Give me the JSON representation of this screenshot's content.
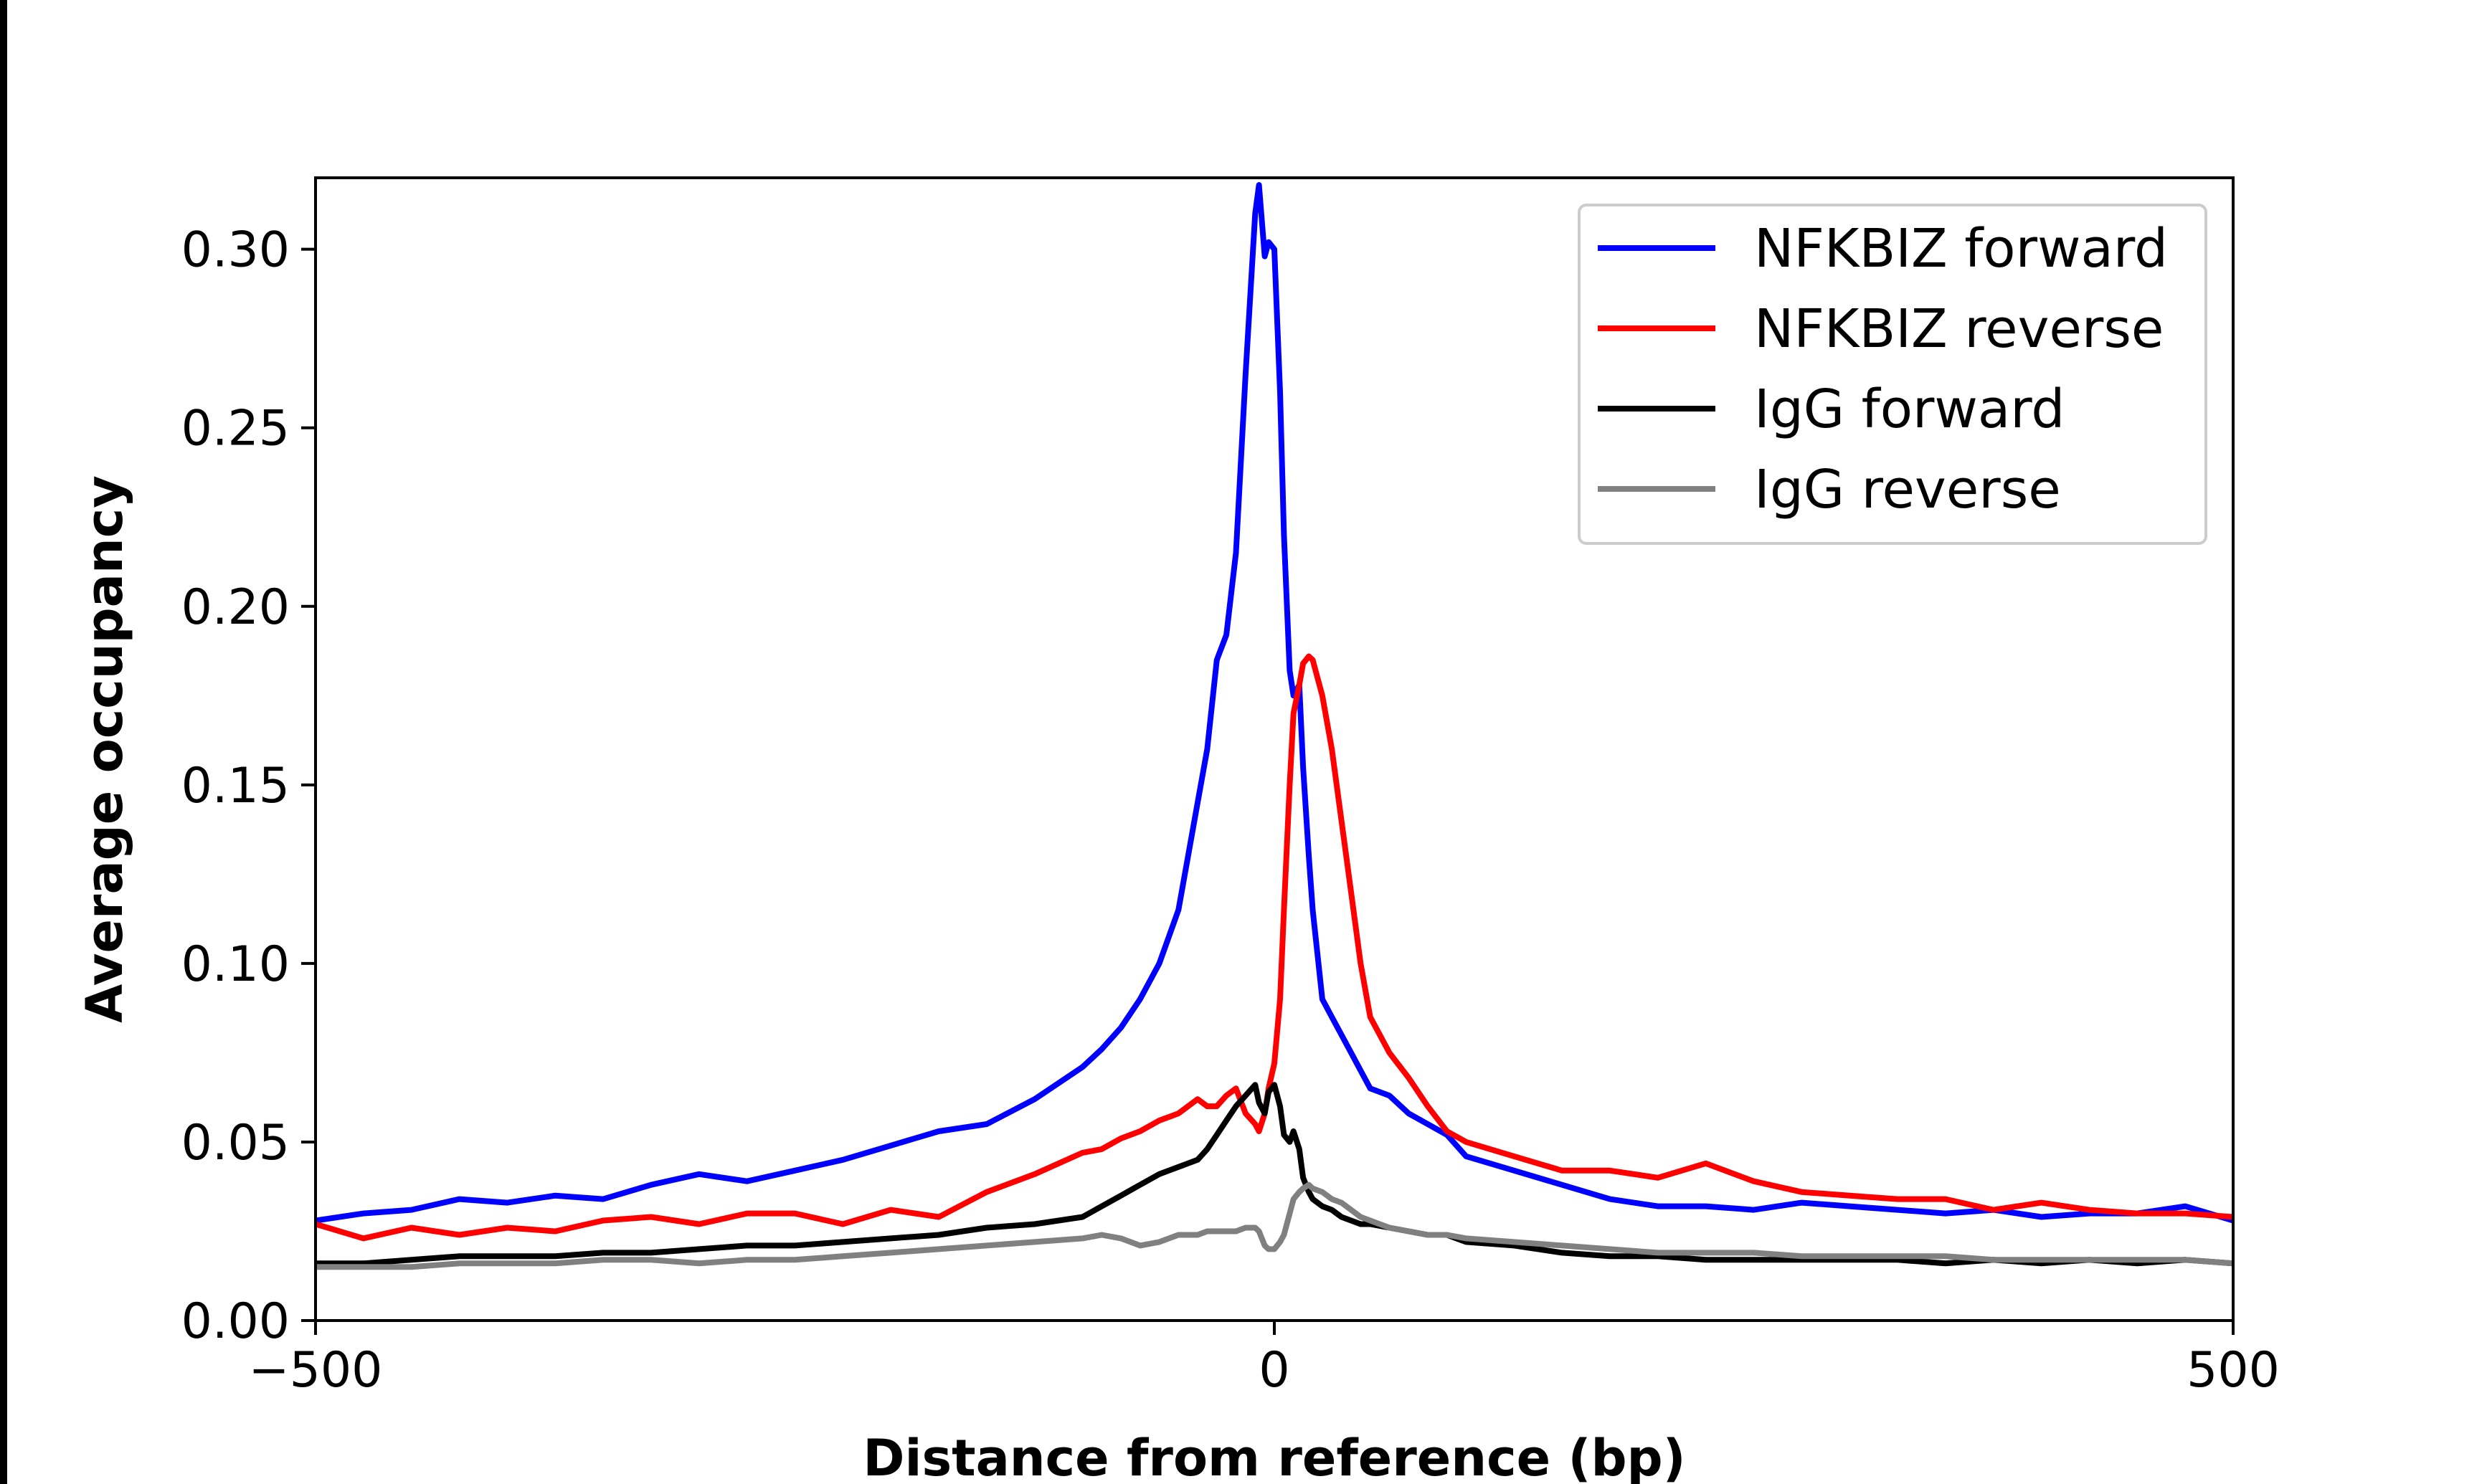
{
  "chart_data": {
    "type": "line",
    "xlabel": "Distance from reference (bp)",
    "ylabel": "Average occupancy",
    "xlim": [
      -500,
      500
    ],
    "ylim": [
      0,
      0.32
    ],
    "x_ticks": [
      {
        "value": -500,
        "label": "−500"
      },
      {
        "value": 0,
        "label": "0"
      },
      {
        "value": 500,
        "label": "500"
      }
    ],
    "y_ticks": [
      {
        "value": 0.0,
        "label": "0.00"
      },
      {
        "value": 0.05,
        "label": "0.05"
      },
      {
        "value": 0.1,
        "label": "0.10"
      },
      {
        "value": 0.15,
        "label": "0.15"
      },
      {
        "value": 0.2,
        "label": "0.20"
      },
      {
        "value": 0.25,
        "label": "0.25"
      },
      {
        "value": 0.3,
        "label": "0.30"
      }
    ],
    "grid": false,
    "legend_position": "top-right",
    "x": [
      -500,
      -475,
      -450,
      -425,
      -400,
      -375,
      -350,
      -325,
      -300,
      -275,
      -250,
      -225,
      -200,
      -175,
      -150,
      -125,
      -100,
      -90,
      -80,
      -70,
      -60,
      -50,
      -40,
      -35,
      -30,
      -25,
      -20,
      -15,
      -10,
      -8,
      -5,
      -3,
      0,
      3,
      5,
      8,
      10,
      13,
      15,
      18,
      20,
      25,
      30,
      35,
      40,
      45,
      50,
      60,
      70,
      80,
      90,
      100,
      125,
      150,
      175,
      200,
      225,
      250,
      275,
      300,
      325,
      350,
      375,
      400,
      425,
      450,
      475,
      500
    ],
    "series": [
      {
        "name": "NFKBIZ forward",
        "color": "#0000ff",
        "values": [
          0.028,
          0.03,
          0.031,
          0.034,
          0.033,
          0.035,
          0.034,
          0.038,
          0.041,
          0.039,
          0.042,
          0.045,
          0.049,
          0.053,
          0.055,
          0.062,
          0.071,
          0.076,
          0.082,
          0.09,
          0.1,
          0.115,
          0.145,
          0.16,
          0.185,
          0.192,
          0.215,
          0.265,
          0.31,
          0.318,
          0.298,
          0.302,
          0.3,
          0.26,
          0.22,
          0.182,
          0.175,
          0.178,
          0.155,
          0.13,
          0.115,
          0.09,
          0.085,
          0.08,
          0.075,
          0.07,
          0.065,
          0.063,
          0.058,
          0.055,
          0.052,
          0.046,
          0.042,
          0.038,
          0.034,
          0.032,
          0.032,
          0.031,
          0.033,
          0.032,
          0.031,
          0.03,
          0.031,
          0.029,
          0.03,
          0.03,
          0.032,
          0.028
        ]
      },
      {
        "name": "NFKBIZ reverse",
        "color": "#ff0000",
        "values": [
          0.027,
          0.023,
          0.026,
          0.024,
          0.026,
          0.025,
          0.028,
          0.029,
          0.027,
          0.03,
          0.03,
          0.027,
          0.031,
          0.029,
          0.036,
          0.041,
          0.047,
          0.048,
          0.051,
          0.053,
          0.056,
          0.058,
          0.062,
          0.06,
          0.06,
          0.063,
          0.065,
          0.058,
          0.055,
          0.053,
          0.058,
          0.065,
          0.072,
          0.09,
          0.115,
          0.15,
          0.17,
          0.178,
          0.184,
          0.186,
          0.185,
          0.175,
          0.16,
          0.14,
          0.12,
          0.1,
          0.085,
          0.075,
          0.068,
          0.06,
          0.053,
          0.05,
          0.046,
          0.042,
          0.042,
          0.04,
          0.044,
          0.039,
          0.036,
          0.035,
          0.034,
          0.034,
          0.031,
          0.033,
          0.031,
          0.03,
          0.03,
          0.029
        ]
      },
      {
        "name": "IgG forward",
        "color": "#000000",
        "values": [
          0.016,
          0.016,
          0.017,
          0.018,
          0.018,
          0.018,
          0.019,
          0.019,
          0.02,
          0.021,
          0.021,
          0.022,
          0.023,
          0.024,
          0.026,
          0.027,
          0.029,
          0.032,
          0.035,
          0.038,
          0.041,
          0.043,
          0.045,
          0.048,
          0.052,
          0.056,
          0.06,
          0.063,
          0.066,
          0.061,
          0.058,
          0.064,
          0.066,
          0.06,
          0.052,
          0.05,
          0.053,
          0.048,
          0.04,
          0.036,
          0.034,
          0.032,
          0.031,
          0.029,
          0.028,
          0.027,
          0.027,
          0.026,
          0.025,
          0.024,
          0.024,
          0.022,
          0.021,
          0.019,
          0.018,
          0.018,
          0.017,
          0.017,
          0.017,
          0.017,
          0.017,
          0.016,
          0.017,
          0.016,
          0.017,
          0.016,
          0.017,
          0.016
        ]
      },
      {
        "name": "IgG reverse",
        "color": "#808080",
        "values": [
          0.015,
          0.015,
          0.015,
          0.016,
          0.016,
          0.016,
          0.017,
          0.017,
          0.016,
          0.017,
          0.017,
          0.018,
          0.019,
          0.02,
          0.021,
          0.022,
          0.023,
          0.024,
          0.023,
          0.021,
          0.022,
          0.024,
          0.024,
          0.025,
          0.025,
          0.025,
          0.025,
          0.026,
          0.026,
          0.025,
          0.021,
          0.02,
          0.02,
          0.022,
          0.024,
          0.03,
          0.034,
          0.036,
          0.037,
          0.038,
          0.037,
          0.036,
          0.034,
          0.033,
          0.031,
          0.029,
          0.028,
          0.026,
          0.025,
          0.024,
          0.024,
          0.023,
          0.022,
          0.021,
          0.02,
          0.019,
          0.019,
          0.019,
          0.018,
          0.018,
          0.018,
          0.018,
          0.017,
          0.017,
          0.017,
          0.017,
          0.017,
          0.016
        ]
      }
    ]
  }
}
